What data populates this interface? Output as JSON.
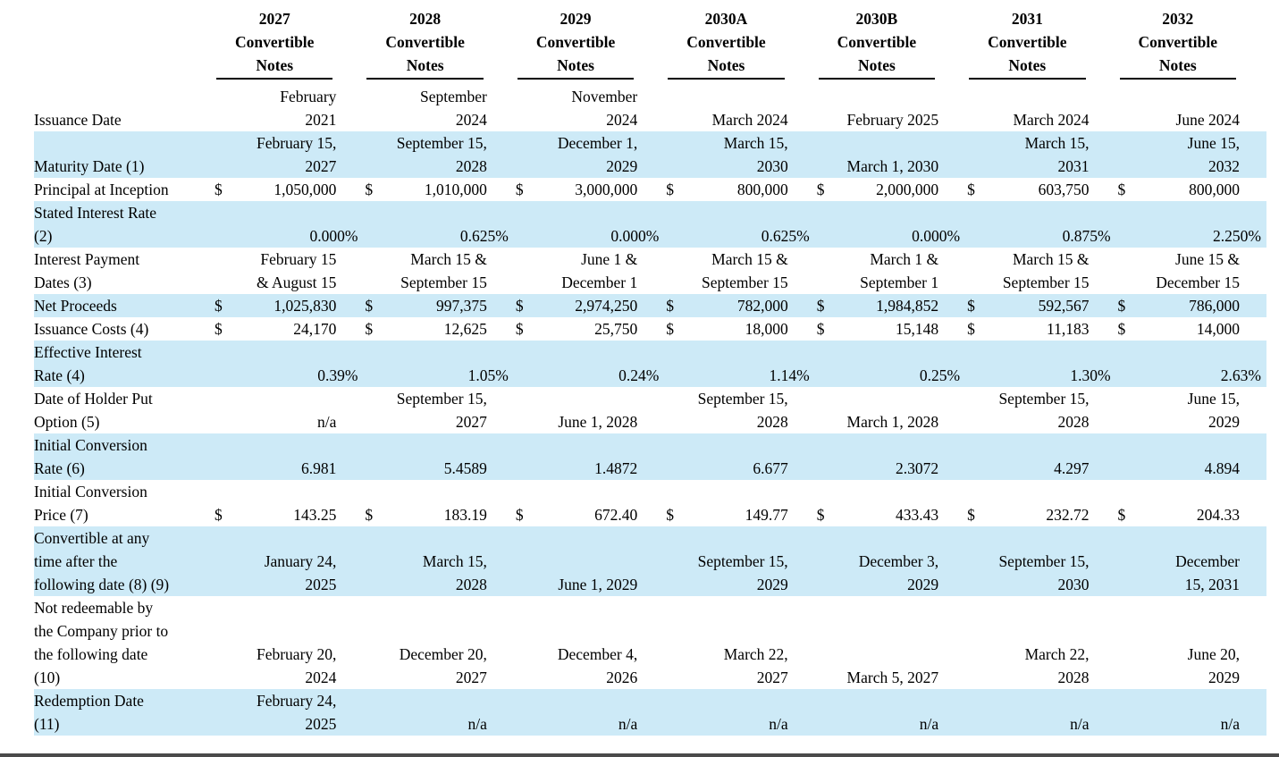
{
  "table": {
    "currency_symbol": "$",
    "highlight_color": "#cdeaf7",
    "columns": [
      {
        "year": "2027",
        "line2": "Convertible",
        "line3": "Notes"
      },
      {
        "year": "2028",
        "line2": "Convertible",
        "line3": "Notes"
      },
      {
        "year": "2029",
        "line2": "Convertible",
        "line3": "Notes"
      },
      {
        "year": "2030A",
        "line2": "Convertible",
        "line3": "Notes"
      },
      {
        "year": "2030B",
        "line2": "Convertible",
        "line3": "Notes"
      },
      {
        "year": "2031",
        "line2": "Convertible",
        "line3": "Notes"
      },
      {
        "year": "2032",
        "line2": "Convertible",
        "line3": "Notes"
      }
    ],
    "rows": [
      {
        "label": "Issuance Date",
        "type": "text",
        "shaded": false,
        "cells": [
          "February\n2021",
          "September\n2024",
          "November\n2024",
          "March 2024",
          "February 2025",
          "March 2024",
          "June 2024"
        ]
      },
      {
        "label": "Maturity Date (1)",
        "type": "text",
        "shaded": true,
        "cells": [
          "February 15,\n2027",
          "September 15,\n2028",
          "December 1,\n2029",
          "March 15,\n2030",
          "March 1, 2030",
          "March 15,\n2031",
          "June 15,\n2032"
        ]
      },
      {
        "label": "Principal at Inception",
        "type": "money",
        "shaded": false,
        "cells": [
          "1,050,000",
          "1,010,000",
          "3,000,000",
          "800,000",
          "2,000,000",
          "603,750",
          "800,000"
        ]
      },
      {
        "label": "Stated Interest Rate\n(2)",
        "type": "percent",
        "shaded": true,
        "cells": [
          "0.000%",
          "0.625%",
          "0.000%",
          "0.625%",
          "0.000%",
          "0.875%",
          "2.250%"
        ]
      },
      {
        "label": "Interest Payment\nDates (3)",
        "type": "text",
        "shaded": false,
        "cells": [
          "February 15\n& August 15",
          "March 15 &\nSeptember 15",
          "June 1 &\nDecember 1",
          "March 15 &\nSeptember 15",
          "March 1 &\nSeptember 1",
          "March 15 &\nSeptember 15",
          "June 15 &\nDecember 15"
        ]
      },
      {
        "label": "Net Proceeds",
        "type": "money",
        "shaded": true,
        "cells": [
          "1,025,830",
          "997,375",
          "2,974,250",
          "782,000",
          "1,984,852",
          "592,567",
          "786,000"
        ]
      },
      {
        "label": "Issuance Costs (4)",
        "type": "money",
        "shaded": false,
        "cells": [
          "24,170",
          "12,625",
          "25,750",
          "18,000",
          "15,148",
          "11,183",
          "14,000"
        ]
      },
      {
        "label": "Effective Interest\nRate (4)",
        "type": "percent",
        "shaded": true,
        "cells": [
          "0.39%",
          "1.05%",
          "0.24%",
          "1.14%",
          "0.25%",
          "1.30%",
          "2.63%"
        ]
      },
      {
        "label": "Date of Holder Put\nOption (5)",
        "type": "text",
        "shaded": false,
        "cells": [
          "n/a",
          "September 15,\n2027",
          "June 1, 2028",
          "September 15,\n2028",
          "March 1, 2028",
          "September 15,\n2028",
          "June 15,\n2029"
        ]
      },
      {
        "label": "Initial Conversion\nRate (6)",
        "type": "text",
        "shaded": true,
        "cells": [
          "6.981",
          "5.4589",
          "1.4872",
          "6.677",
          "2.3072",
          "4.297",
          "4.894"
        ]
      },
      {
        "label": "Initial Conversion\nPrice (7)",
        "type": "money",
        "shaded": false,
        "cells": [
          "143.25",
          "183.19",
          "672.40",
          "149.77",
          "433.43",
          "232.72",
          "204.33"
        ]
      },
      {
        "label": "Convertible at any\ntime after the\nfollowing date (8) (9)",
        "type": "text",
        "shaded": true,
        "cells": [
          "January 24,\n2025",
          "March 15,\n2028",
          "June 1, 2029",
          "September 15,\n2029",
          "December 3,\n2029",
          "September 15,\n2030",
          "December\n15, 2031"
        ]
      },
      {
        "label": "Not redeemable by\nthe Company prior to\nthe following date\n(10)",
        "type": "text",
        "shaded": false,
        "cells": [
          "February 20,\n2024",
          "December 20,\n2027",
          "December 4,\n2026",
          "March 22,\n2027",
          "March 5, 2027",
          "March 22,\n2028",
          "June 20,\n2029"
        ]
      },
      {
        "label": "Redemption Date\n(11)",
        "type": "text",
        "shaded": true,
        "cells": [
          "February 24,\n2025",
          "n/a",
          "n/a",
          "n/a",
          "n/a",
          "n/a",
          "n/a"
        ]
      }
    ]
  }
}
